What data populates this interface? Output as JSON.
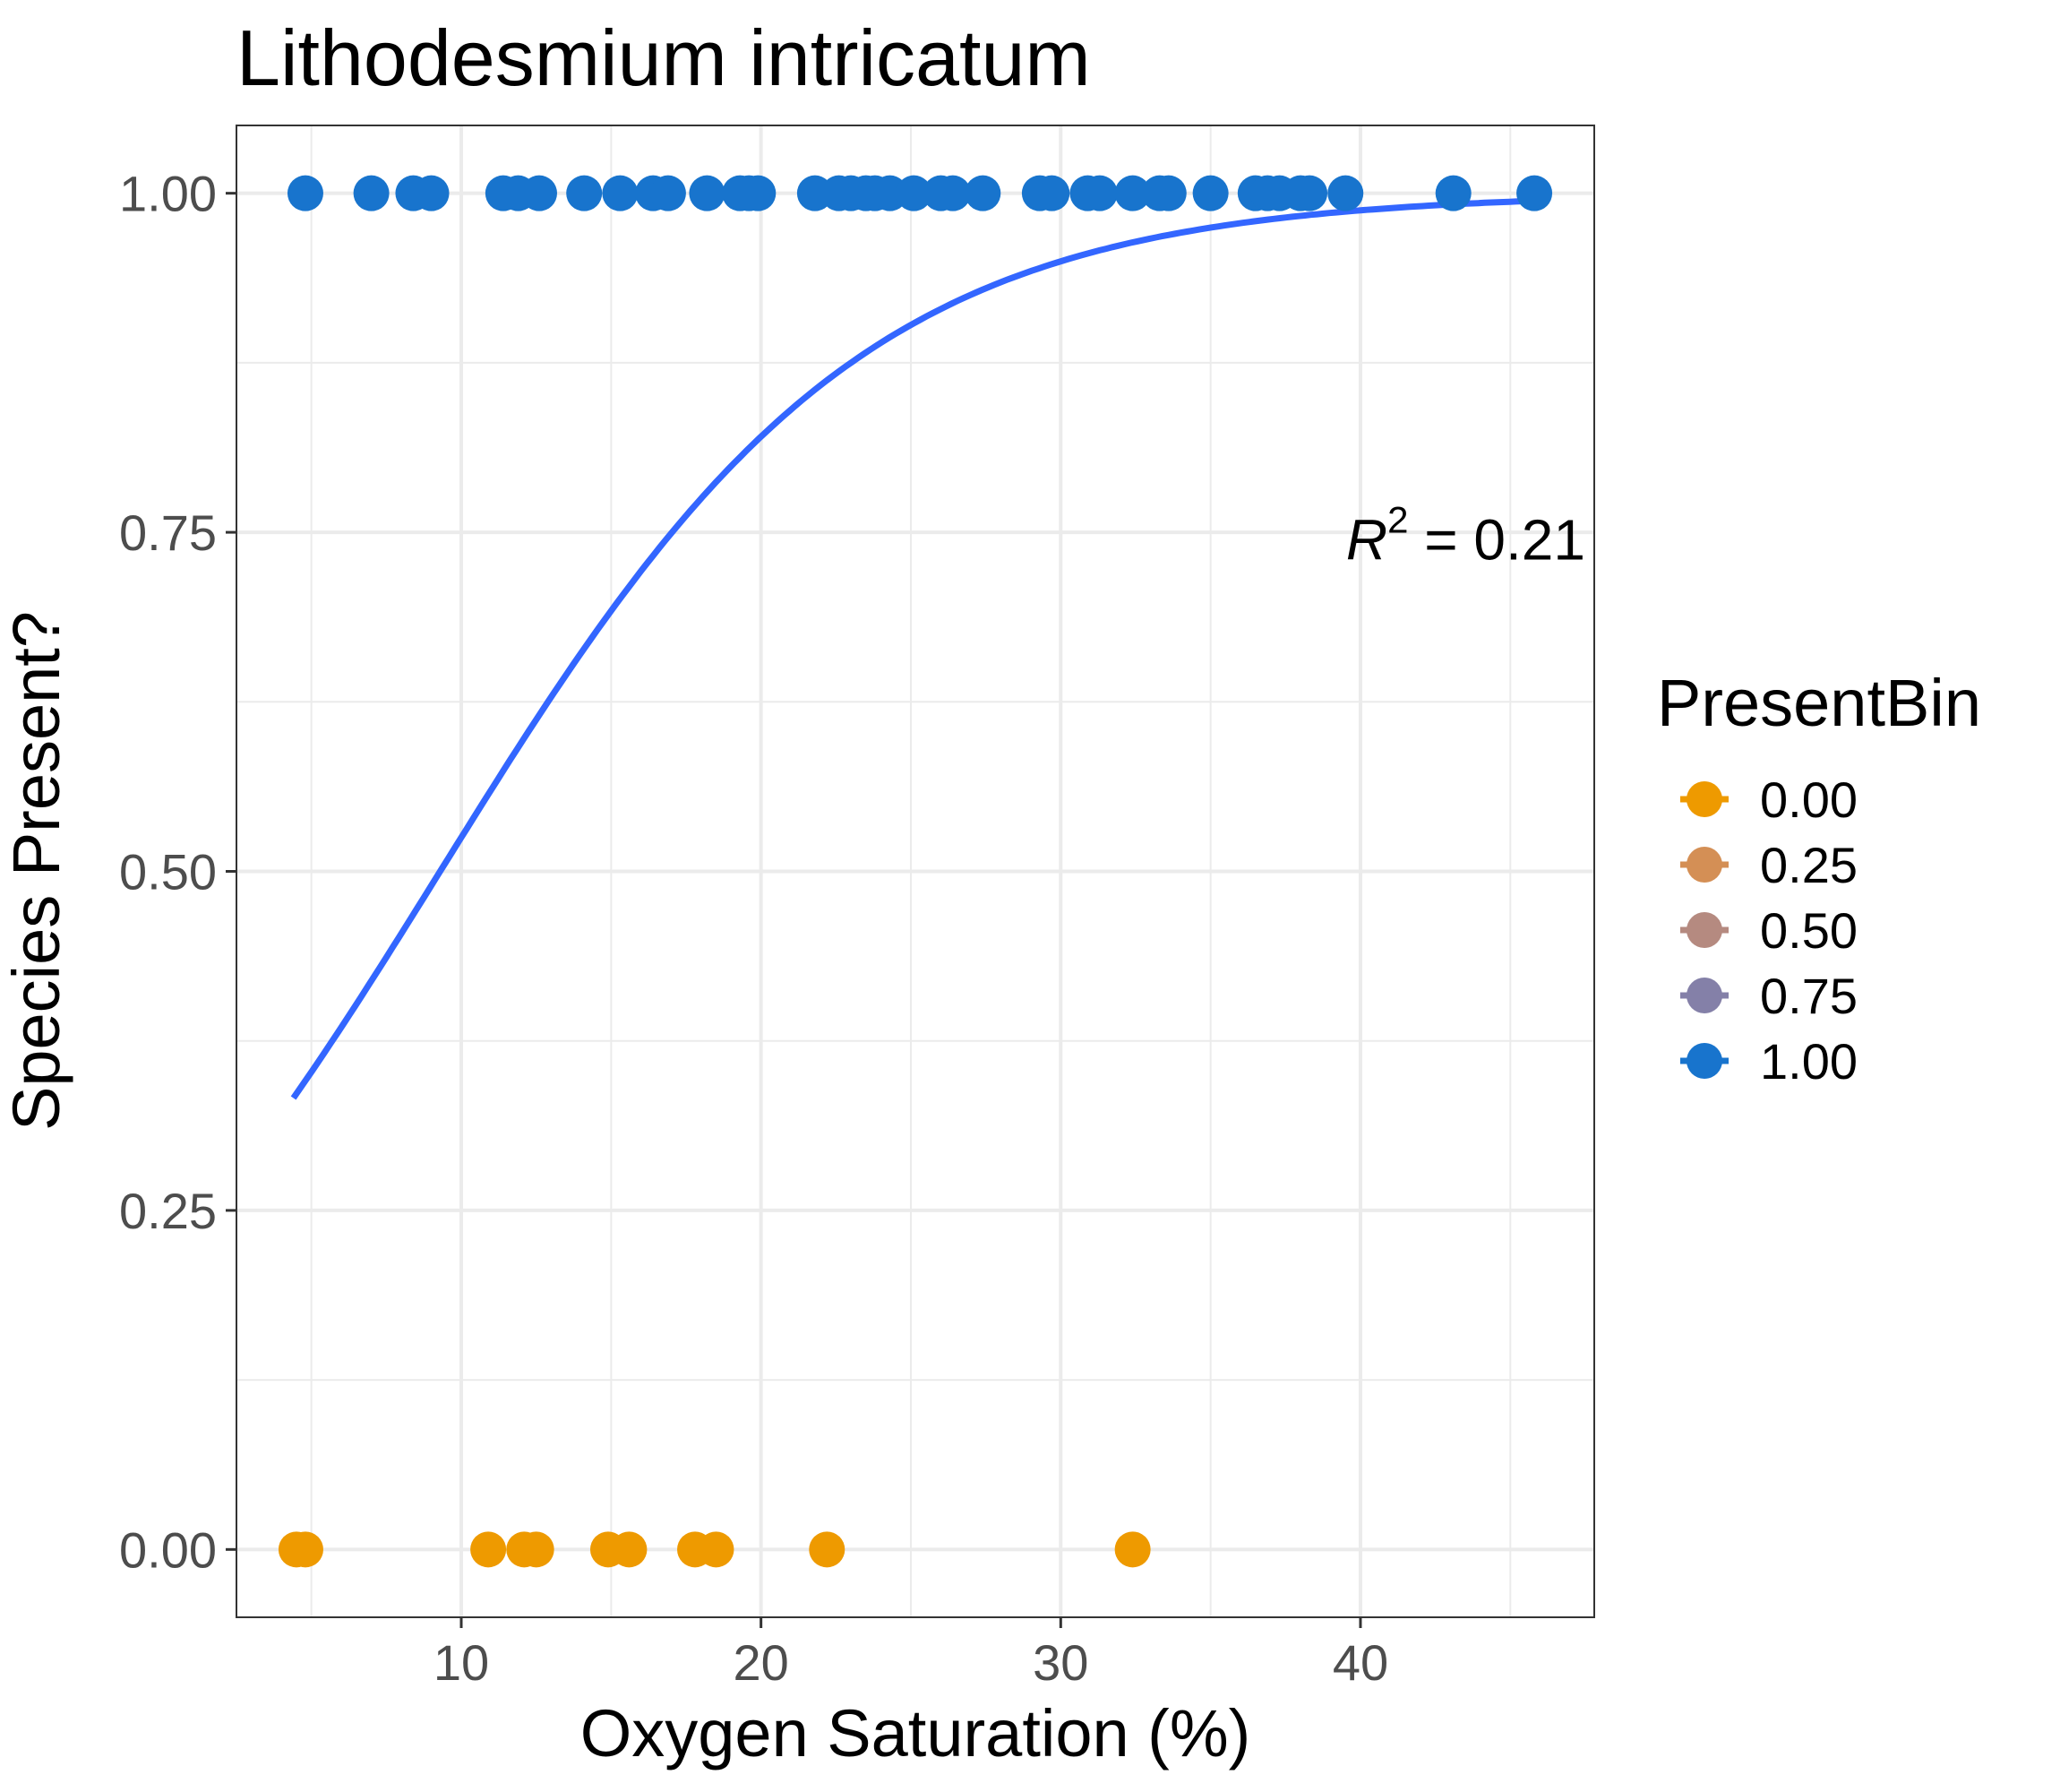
{
  "chart_data": {
    "type": "scatter",
    "title": "Lithodesmium intricatum",
    "xlabel": "Oxygen Saturation (%)",
    "ylabel": "Species Present?",
    "xlim": [
      2.5,
      47.8
    ],
    "ylim": [
      -0.05,
      1.05
    ],
    "x_ticks": [
      10,
      20,
      30,
      40
    ],
    "x_tick_labels": [
      "10",
      "20",
      "30",
      "40"
    ],
    "y_ticks": [
      0,
      0.25,
      0.5,
      0.75,
      1
    ],
    "y_tick_labels": [
      "0.00",
      "0.25",
      "0.50",
      "0.75",
      "1.00"
    ],
    "grid": true,
    "legend": {
      "title": "PresentBin",
      "placement": "right",
      "entries": [
        {
          "label": "0.00",
          "color": "#EE9A00"
        },
        {
          "label": "0.25",
          "color": "#D48F55"
        },
        {
          "label": "0.50",
          "color": "#B58A80"
        },
        {
          "label": "0.75",
          "color": "#8480A8"
        },
        {
          "label": "1.00",
          "color": "#1874CD"
        }
      ]
    },
    "series": [
      {
        "name": "1.00",
        "color": "#1874CD",
        "y": 1,
        "x": [
          4.8,
          7.0,
          8.4,
          9.0,
          11.4,
          11.9,
          12.6,
          14.1,
          15.3,
          16.4,
          16.9,
          18.2,
          19.3,
          19.6,
          19.9,
          21.8,
          22.6,
          23.0,
          23.5,
          23.8,
          24.3,
          25.1,
          26.0,
          26.4,
          27.4,
          29.3,
          29.7,
          30.9,
          31.3,
          32.4,
          33.3,
          33.6,
          35.0,
          36.5,
          36.9,
          37.3,
          38.0,
          38.3,
          39.5,
          43.1,
          45.8
        ]
      },
      {
        "name": "0.00",
        "color": "#EE9A00",
        "y": 0,
        "x": [
          4.5,
          4.8,
          10.9,
          12.1,
          12.5,
          14.9,
          15.6,
          17.8,
          18.5,
          22.2,
          32.4
        ]
      }
    ],
    "fit_line": {
      "type": "logistic",
      "color": "#3366FF",
      "intercept": -1.32,
      "slope": 0.142,
      "x_range": [
        4.4,
        45.8
      ]
    },
    "annotation": {
      "base": "R",
      "superscript": "2",
      "rest": " = 0.21",
      "x": 47.5,
      "y": 0.73
    }
  }
}
